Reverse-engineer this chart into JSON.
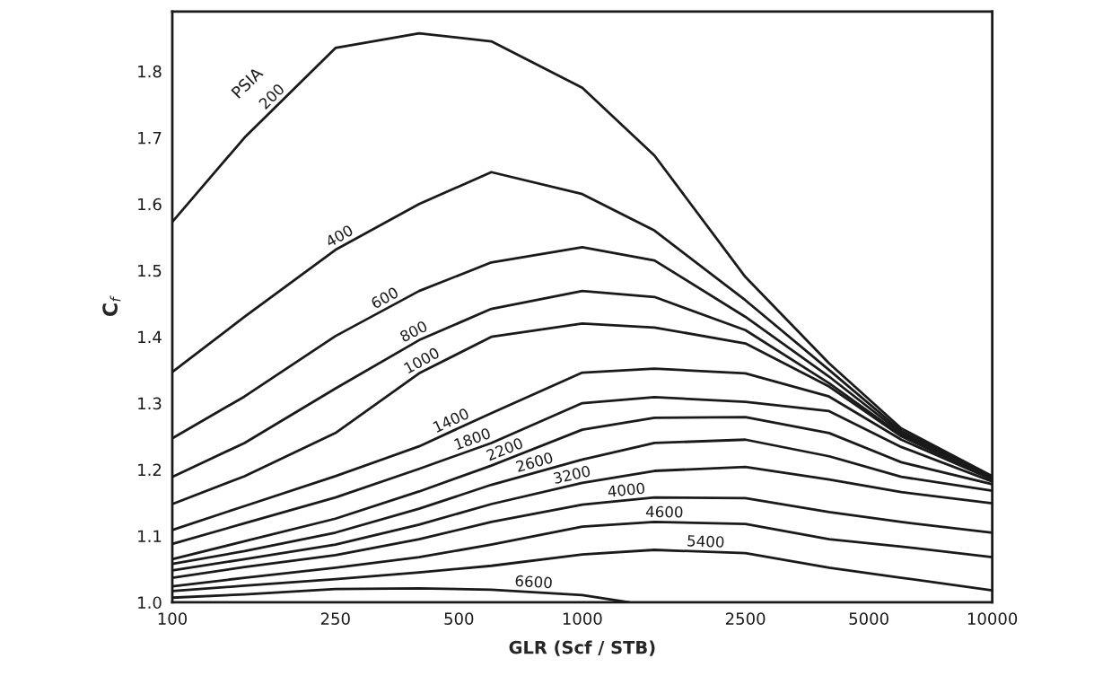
{
  "chart_data": {
    "type": "line",
    "xlabel": "GLR (Scf / STB)",
    "ylabel": "C$_{f}$",
    "log": "x",
    "grid": false,
    "legend": false,
    "marker": "none",
    "line_style": "solid",
    "x": [
      100,
      150,
      250,
      400,
      600,
      1000,
      1500,
      2500,
      4000,
      6000,
      10000
    ],
    "xlim": [
      100,
      10000
    ],
    "xticks": [
      100,
      250,
      500,
      1000,
      2500,
      5000,
      10000
    ],
    "ylim": [
      1.0,
      1.89
    ],
    "yticks": [
      {
        "value": 1.0,
        "label": "1.0"
      },
      1.1,
      1.2,
      1.3,
      1.4,
      1.5,
      1.6,
      1.7,
      1.8
    ],
    "annotations": [
      "PSIA"
    ],
    "series": [
      {
        "name": "200",
        "color": "#1a1a1a",
        "values": [
          1.573,
          1.7,
          1.835,
          1.857,
          1.845,
          1.775,
          1.673,
          1.49,
          1.36,
          1.262,
          1.19
        ]
      },
      {
        "name": "400",
        "color": "#1a1a1a",
        "values": [
          1.347,
          1.43,
          1.531,
          1.6,
          1.648,
          1.615,
          1.56,
          1.455,
          1.35,
          1.258,
          1.189
        ]
      },
      {
        "name": "600",
        "color": "#1a1a1a",
        "values": [
          1.247,
          1.31,
          1.401,
          1.469,
          1.512,
          1.535,
          1.515,
          1.43,
          1.34,
          1.255,
          1.188
        ]
      },
      {
        "name": "800",
        "color": "#1a1a1a",
        "values": [
          1.189,
          1.24,
          1.322,
          1.395,
          1.442,
          1.469,
          1.46,
          1.41,
          1.33,
          1.252,
          1.187
        ]
      },
      {
        "name": "1000",
        "color": "#1a1a1a",
        "values": [
          1.148,
          1.19,
          1.255,
          1.345,
          1.4,
          1.42,
          1.414,
          1.39,
          1.325,
          1.25,
          1.186
        ]
      },
      {
        "name": "1400",
        "color": "#1a1a1a",
        "values": [
          1.109,
          1.145,
          1.19,
          1.235,
          1.285,
          1.346,
          1.352,
          1.345,
          1.31,
          1.245,
          1.185
        ]
      },
      {
        "name": "1800",
        "color": "#1a1a1a",
        "values": [
          1.088,
          1.119,
          1.158,
          1.201,
          1.24,
          1.3,
          1.309,
          1.302,
          1.288,
          1.234,
          1.182
        ]
      },
      {
        "name": "2200",
        "color": "#1a1a1a",
        "values": [
          1.065,
          1.092,
          1.126,
          1.167,
          1.206,
          1.26,
          1.278,
          1.279,
          1.255,
          1.211,
          1.178
        ]
      },
      {
        "name": "2600",
        "color": "#1a1a1a",
        "values": [
          1.058,
          1.077,
          1.105,
          1.141,
          1.177,
          1.215,
          1.24,
          1.245,
          1.22,
          1.189,
          1.168
        ]
      },
      {
        "name": "3200",
        "color": "#1a1a1a",
        "values": [
          1.048,
          1.065,
          1.087,
          1.117,
          1.148,
          1.18,
          1.198,
          1.204,
          1.185,
          1.166,
          1.149
        ]
      },
      {
        "name": "4000",
        "color": "#1a1a1a",
        "values": [
          1.037,
          1.053,
          1.071,
          1.095,
          1.121,
          1.147,
          1.158,
          1.157,
          1.136,
          1.121,
          1.105
        ]
      },
      {
        "name": "4600",
        "color": "#1a1a1a",
        "values": [
          1.024,
          1.037,
          1.052,
          1.068,
          1.087,
          1.114,
          1.121,
          1.118,
          1.095,
          1.084,
          1.068
        ]
      },
      {
        "name": "5400",
        "color": "#1a1a1a",
        "values": [
          1.017,
          1.025,
          1.035,
          1.045,
          1.055,
          1.072,
          1.079,
          1.074,
          1.052,
          1.037,
          1.018
        ]
      },
      {
        "name": "6600",
        "color": "#1a1a1a",
        "x": [
          100,
          150,
          250,
          400,
          600,
          1000,
          1300
        ],
        "values": [
          1.007,
          1.012,
          1.02,
          1.021,
          1.019,
          1.011,
          1.0
        ]
      }
    ]
  }
}
